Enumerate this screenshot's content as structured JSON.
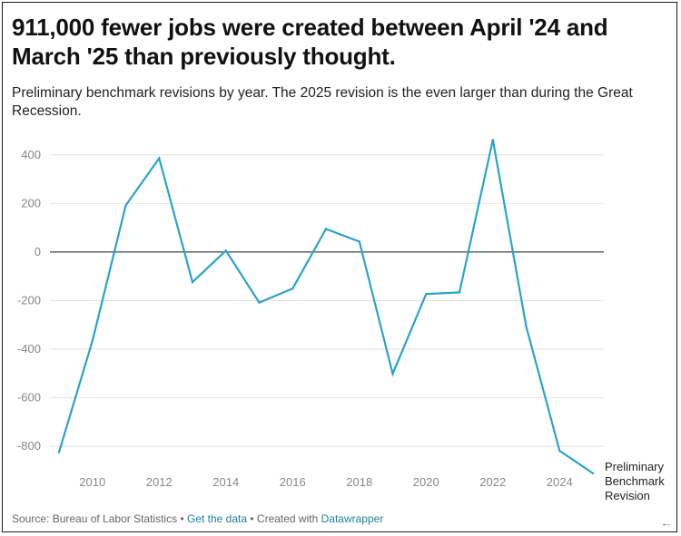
{
  "title": "911,000 fewer jobs were created between April '24 and March '25 than previously thought.",
  "subtitle": "Preliminary benchmark revisions by year. The 2025 revision is the even larger than during the Great Recession.",
  "footer": {
    "source": "Source: Bureau of Labor Statistics",
    "separator": " • ",
    "get_data": "Get the data",
    "created_with": "Created with ",
    "datawrapper": "Datawrapper"
  },
  "corner_icon": "arrow-left-icon",
  "colors": {
    "line": "#2aa3cc",
    "zero_line": "#111111",
    "grid": "#e2e2e2",
    "tick": "#888888",
    "label": "#222222"
  },
  "chart_data": {
    "type": "line",
    "series": [
      {
        "name": "Preliminary Benchmark Revision",
        "x": [
          2009,
          2010,
          2011,
          2012,
          2013,
          2014,
          2015,
          2016,
          2017,
          2018,
          2019,
          2020,
          2021,
          2022,
          2023,
          2024,
          2025
        ],
        "values": [
          -824,
          -366,
          192,
          386,
          -124,
          6,
          -208,
          -150,
          95,
          43,
          -501,
          -173,
          -166,
          462,
          -306,
          -818,
          -911
        ]
      }
    ],
    "x_ticks": [
      "2010",
      "2012",
      "2014",
      "2016",
      "2018",
      "2020",
      "2022",
      "2024"
    ],
    "y_ticks": [
      "400",
      "200",
      "0",
      "-200",
      "-400",
      "-600",
      "-800"
    ],
    "xlim": [
      2009,
      2025
    ],
    "ylim": [
      -930,
      470
    ],
    "grid": true,
    "zero_line": true,
    "label_text": [
      "Preliminary",
      "Benchmark",
      "Revision"
    ]
  }
}
